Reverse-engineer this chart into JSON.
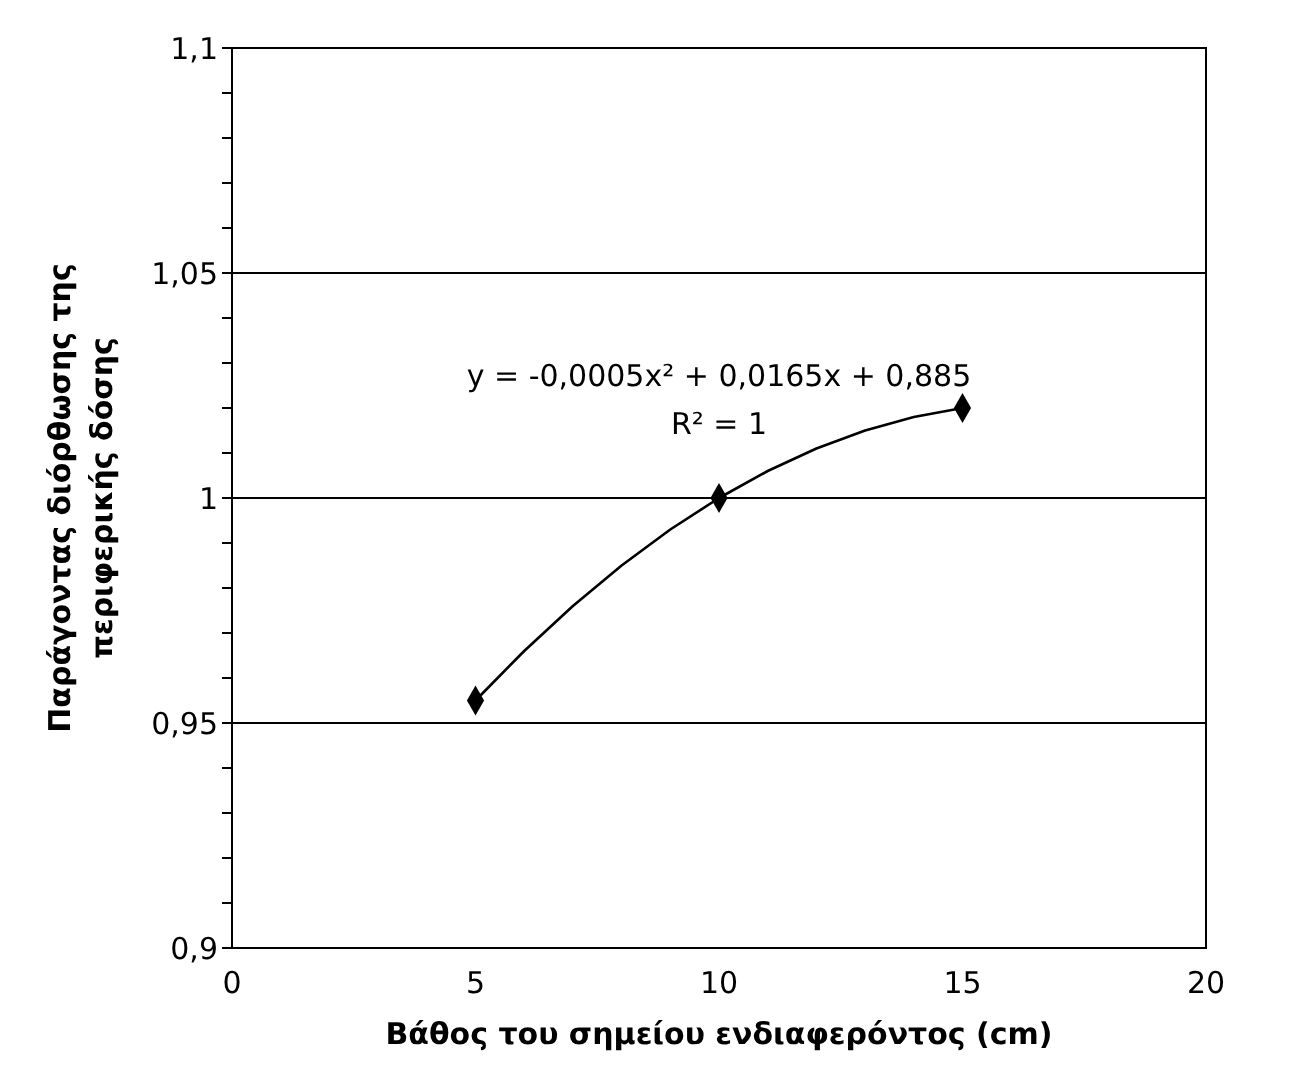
{
  "chart_data": {
    "type": "scatter",
    "xlabel": "Βάθος του σημείου ενδιαφερόντος (cm)",
    "ylabel": "Παράγοντας διόρθωσης της περιφερικής δόσης",
    "x": [
      5,
      10,
      15
    ],
    "series": [
      {
        "color": "#000000",
        "marker": "diamond",
        "values": [
          0.955,
          1.0,
          1.02
        ]
      },
      {
        "type": "line",
        "color": "#000000",
        "marker": "none",
        "line_style": "solid",
        "x": [
          5,
          6,
          7,
          8,
          9,
          10,
          11,
          12,
          13,
          14,
          15
        ],
        "values": [
          0.955,
          0.966,
          0.976,
          0.985,
          0.993,
          1.0,
          1.006,
          1.011,
          1.015,
          1.018,
          1.02
        ]
      }
    ],
    "annotations": [
      "y = -0,0005x² + 0,0165x + 0,885",
      "R² = 1"
    ],
    "xlim": [
      0,
      20
    ],
    "xticks": [
      0,
      5,
      10,
      15,
      20
    ],
    "ylim": [
      0.9,
      1.1
    ],
    "yticks": [
      {
        "value": 0.9,
        "label": "0,9"
      },
      {
        "value": 0.91,
        "label": null
      },
      {
        "value": 0.92,
        "label": null
      },
      {
        "value": 0.93,
        "label": null
      },
      {
        "value": 0.94,
        "label": null
      },
      {
        "value": 0.95,
        "label": "0,95"
      },
      {
        "value": 0.96,
        "label": null
      },
      {
        "value": 0.97,
        "label": null
      },
      {
        "value": 0.98,
        "label": null
      },
      {
        "value": 0.99,
        "label": null
      },
      {
        "value": 1,
        "label": "1"
      },
      {
        "value": 1.01,
        "label": null
      },
      {
        "value": 1.02,
        "label": null
      },
      {
        "value": 1.03,
        "label": null
      },
      {
        "value": 1.04,
        "label": null
      },
      {
        "value": 1.05,
        "label": "1,05"
      },
      {
        "value": 1.06,
        "label": null
      },
      {
        "value": 1.07,
        "label": null
      },
      {
        "value": 1.08,
        "label": null
      },
      {
        "value": 1.09,
        "label": null
      },
      {
        "value": 1.1,
        "label": "1,1"
      }
    ],
    "grid": "y"
  }
}
